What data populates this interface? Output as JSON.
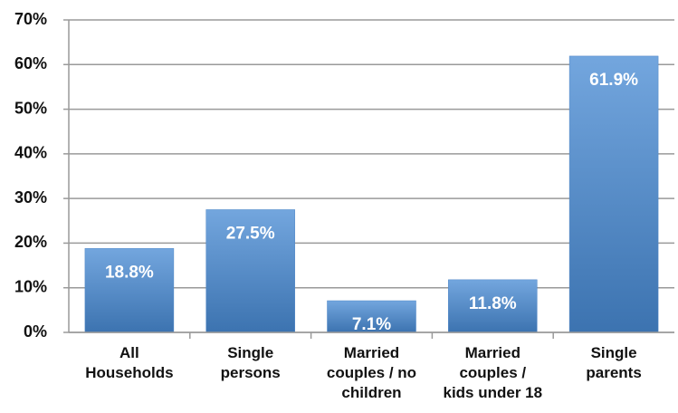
{
  "chart_data": {
    "type": "bar",
    "categories": [
      "All\nHouseholds",
      "Single\npersons",
      "Married\ncouples / no\nchildren",
      "Married\ncouples /\nkids under 18",
      "Single\nparents"
    ],
    "values": [
      18.8,
      27.5,
      7.1,
      11.8,
      61.9
    ],
    "value_labels": [
      "18.8%",
      "27.5%",
      "7.1%",
      "11.8%",
      "61.9%"
    ],
    "color": "#4f86c6",
    "ylim": [
      0,
      70
    ],
    "yticks": [
      {
        "value": 0,
        "label": "0%"
      },
      {
        "value": 10,
        "label": "10%"
      },
      {
        "value": 20,
        "label": "20%"
      },
      {
        "value": 30,
        "label": "30%"
      },
      {
        "value": 40,
        "label": "40%"
      },
      {
        "value": 50,
        "label": "50%"
      },
      {
        "value": 60,
        "label": "60%"
      },
      {
        "value": 70,
        "label": "70%"
      }
    ],
    "grid": true
  }
}
